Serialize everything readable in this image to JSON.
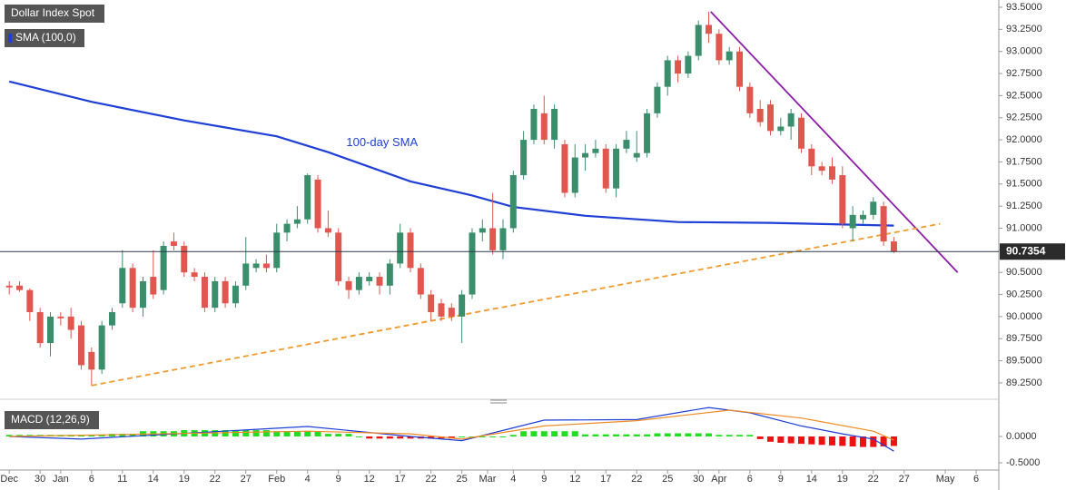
{
  "chart_data": [
    {
      "type": "candlestick",
      "title": "Dollar Index Spot",
      "up_color": "#3b8e6c",
      "down_color": "#e0574f",
      "open": [
        90.35,
        90.35,
        90.3,
        90.05,
        89.7,
        90.0,
        90.0,
        89.9,
        89.6,
        89.4,
        89.9,
        90.15,
        90.55,
        90.1,
        90.45,
        90.3,
        90.85,
        90.8,
        90.5,
        90.45,
        90.1,
        90.4,
        90.15,
        90.35,
        90.55,
        90.6,
        90.55,
        90.95,
        91.05,
        91.1,
        91.55,
        91.0,
        90.95,
        90.4,
        90.3,
        90.4,
        90.45,
        90.35,
        90.6,
        90.95,
        90.55,
        90.25,
        90.15,
        90.1,
        90.0,
        90.25,
        90.95,
        91.0,
        90.75,
        91.0,
        91.6,
        92.0,
        92.3,
        92.0,
        91.95,
        91.4,
        91.8,
        91.85,
        91.9,
        91.45,
        91.9,
        91.8,
        91.85,
        92.3,
        92.6,
        92.9,
        92.75,
        92.95,
        93.3,
        93.2,
        92.9,
        93.0,
        92.6,
        92.35,
        92.4,
        92.1,
        92.15,
        92.25,
        91.9,
        91.7,
        91.7,
        91.6,
        91.0,
        91.1,
        91.15,
        91.25,
        90.85
      ],
      "high": [
        90.4,
        90.4,
        90.32,
        90.1,
        90.05,
        90.05,
        90.1,
        89.95,
        89.65,
        89.95,
        90.1,
        90.75,
        90.6,
        90.45,
        90.75,
        90.85,
        90.95,
        90.85,
        90.55,
        90.5,
        90.45,
        90.45,
        90.4,
        90.9,
        90.65,
        90.7,
        91.05,
        91.1,
        91.25,
        91.62,
        91.6,
        91.2,
        91.0,
        90.45,
        90.5,
        90.5,
        90.5,
        90.65,
        91.05,
        91.0,
        90.6,
        90.3,
        90.2,
        90.15,
        90.3,
        91.0,
        91.1,
        91.4,
        91.1,
        91.65,
        92.1,
        92.4,
        92.5,
        92.4,
        92.0,
        91.95,
        91.95,
        92.0,
        91.95,
        91.95,
        92.1,
        92.1,
        92.35,
        92.65,
        92.95,
        92.95,
        93.0,
        93.35,
        93.45,
        93.25,
        93.05,
        93.05,
        92.65,
        92.45,
        92.45,
        92.25,
        92.35,
        92.3,
        91.95,
        91.75,
        91.8,
        91.7,
        91.25,
        91.2,
        91.35,
        91.3,
        90.9
      ],
      "low": [
        90.25,
        90.28,
        89.95,
        89.65,
        89.55,
        89.9,
        89.75,
        89.4,
        89.22,
        89.35,
        89.85,
        90.1,
        90.05,
        90.0,
        90.2,
        90.25,
        90.75,
        90.45,
        90.4,
        90.05,
        90.05,
        90.1,
        90.1,
        90.3,
        90.5,
        90.5,
        90.5,
        90.85,
        91.0,
        91.05,
        90.95,
        90.9,
        90.35,
        90.2,
        90.25,
        90.35,
        90.25,
        90.25,
        90.55,
        90.5,
        90.2,
        89.95,
        89.95,
        89.95,
        89.7,
        90.2,
        90.85,
        90.7,
        90.65,
        90.95,
        91.55,
        91.95,
        91.95,
        91.9,
        91.35,
        91.35,
        91.65,
        91.8,
        91.4,
        91.35,
        91.85,
        91.75,
        91.8,
        92.25,
        92.5,
        92.65,
        92.7,
        92.9,
        93.1,
        92.85,
        92.85,
        92.55,
        92.25,
        92.15,
        92.05,
        92.05,
        92.0,
        91.85,
        91.6,
        91.6,
        91.5,
        91.0,
        90.85,
        91.05,
        91.1,
        90.8,
        90.72
      ],
      "close": [
        90.33,
        90.3,
        90.05,
        89.7,
        90.0,
        89.98,
        89.85,
        89.45,
        89.4,
        89.9,
        90.05,
        90.55,
        90.1,
        90.4,
        90.25,
        90.8,
        90.8,
        90.5,
        90.45,
        90.1,
        90.4,
        90.15,
        90.35,
        90.6,
        90.6,
        90.55,
        90.95,
        91.05,
        91.1,
        91.6,
        91.0,
        90.95,
        90.4,
        90.3,
        90.45,
        90.45,
        90.35,
        90.6,
        90.95,
        90.55,
        90.25,
        90.05,
        90.0,
        90.0,
        90.25,
        90.95,
        91.0,
        90.75,
        91.0,
        91.6,
        92.0,
        92.35,
        92.0,
        92.35,
        91.4,
        91.8,
        91.85,
        91.9,
        91.45,
        91.9,
        92.0,
        91.85,
        92.3,
        92.6,
        92.9,
        92.75,
        92.95,
        93.3,
        93.2,
        92.9,
        93.0,
        92.6,
        92.3,
        92.2,
        92.1,
        92.15,
        92.3,
        91.9,
        91.7,
        91.65,
        91.55,
        91.05,
        91.15,
        91.15,
        91.3,
        90.85,
        90.7354
      ],
      "sma": {
        "name": "SMA (100,0)",
        "color": "#1f3fd6",
        "annotation": "100-day SMA",
        "x": [
          0,
          8,
          17,
          26,
          31,
          39,
          45,
          49,
          56,
          65,
          74,
          86
        ],
        "values": [
          92.66,
          92.43,
          92.22,
          92.04,
          91.86,
          91.53,
          91.37,
          91.24,
          91.14,
          91.07,
          91.06,
          91.03
        ]
      },
      "trendlines": [
        {
          "color": "#8b1fa8",
          "dashed": false,
          "x": [
            68.2,
            92.2
          ],
          "values": [
            93.45,
            90.5
          ]
        },
        {
          "color": "#f29a2e",
          "dashed": true,
          "x": [
            8,
            90.5
          ],
          "values": [
            89.22,
            91.05
          ]
        }
      ],
      "last_price": 90.7354,
      "xlim": [
        -0.9,
        96.2
      ],
      "ylim": [
        89.085,
        93.582
      ],
      "xticks": [
        {
          "value": 0,
          "label": "Dec"
        },
        {
          "value": 3,
          "label": "30"
        },
        {
          "value": 5,
          "label": "Jan"
        },
        {
          "value": 8,
          "label": "6"
        },
        {
          "value": 11,
          "label": "11"
        },
        {
          "value": 14,
          "label": "14"
        },
        {
          "value": 17,
          "label": "19"
        },
        {
          "value": 20,
          "label": "22"
        },
        {
          "value": 23,
          "label": "27"
        },
        {
          "value": 26,
          "label": "Feb"
        },
        {
          "value": 29,
          "label": "4"
        },
        {
          "value": 32,
          "label": "9"
        },
        {
          "value": 35,
          "label": "12"
        },
        {
          "value": 38,
          "label": "17"
        },
        {
          "value": 41,
          "label": "22"
        },
        {
          "value": 44,
          "label": "25"
        },
        {
          "value": 46.5,
          "label": "Mar"
        },
        {
          "value": 49,
          "label": "4"
        },
        {
          "value": 52,
          "label": "9"
        },
        {
          "value": 55,
          "label": "12"
        },
        {
          "value": 58,
          "label": "17"
        },
        {
          "value": 61,
          "label": "22"
        },
        {
          "value": 64,
          "label": "25"
        },
        {
          "value": 67,
          "label": "30"
        },
        {
          "value": 69,
          "label": "Apr"
        },
        {
          "value": 72,
          "label": "6"
        },
        {
          "value": 75,
          "label": "9"
        },
        {
          "value": 78,
          "label": "14"
        },
        {
          "value": 81,
          "label": "19"
        },
        {
          "value": 84,
          "label": "22"
        },
        {
          "value": 87,
          "label": "27"
        },
        {
          "value": 91,
          "label": "May"
        },
        {
          "value": 94,
          "label": "6"
        }
      ],
      "yticks": [
        {
          "value": 89.25,
          "label": "89.2500"
        },
        {
          "value": 89.5,
          "label": "89.5000"
        },
        {
          "value": 89.75,
          "label": "89.7500"
        },
        {
          "value": 90,
          "label": "90.0000"
        },
        {
          "value": 90.25,
          "label": "90.2500"
        },
        {
          "value": 90.5,
          "label": "90.5000"
        },
        {
          "value": 90.75,
          "label": "90.7500"
        },
        {
          "value": 91,
          "label": "91.0000"
        },
        {
          "value": 91.25,
          "label": "91.2500"
        },
        {
          "value": 91.5,
          "label": "91.5000"
        },
        {
          "value": 91.75,
          "label": "91.7500"
        },
        {
          "value": 92,
          "label": "92.0000"
        },
        {
          "value": 92.25,
          "label": "92.2500"
        },
        {
          "value": 92.5,
          "label": "92.5000"
        },
        {
          "value": 92.75,
          "label": "92.7500"
        },
        {
          "value": 93,
          "label": "93.0000"
        },
        {
          "value": 93.25,
          "label": "93.2500"
        },
        {
          "value": 93.5,
          "label": "93.5000"
        }
      ]
    },
    {
      "type": "macd",
      "title": "MACD (12,26,9)",
      "xlim": [
        -0.9,
        96.2
      ],
      "ylim": [
        -0.638,
        0.569
      ],
      "yticks": [
        {
          "value": 0,
          "label": "0.0000"
        },
        {
          "value": -0.5,
          "label": "-0.5000"
        }
      ],
      "series": [
        {
          "color": "#1f3fd6",
          "x": [
            0,
            7,
            29,
            39,
            44,
            52,
            61,
            68,
            72,
            77,
            81,
            84,
            86
          ],
          "values": [
            0.0,
            -0.05,
            0.19,
            0.0,
            -0.08,
            0.31,
            0.32,
            0.55,
            0.45,
            0.2,
            0.05,
            -0.05,
            -0.28
          ]
        },
        {
          "color": "#f08a24",
          "x": [
            0,
            29,
            39,
            44,
            52,
            61,
            70,
            77,
            84,
            86
          ],
          "values": [
            0.0,
            0.1,
            0.05,
            -0.05,
            0.2,
            0.3,
            0.5,
            0.35,
            0.1,
            -0.07
          ]
        }
      ],
      "histogram": {
        "up_color": "#22dd22",
        "down_color": "#ee1111",
        "values": [
          0.03,
          0.03,
          0.03,
          0.03,
          0.03,
          0.03,
          0.03,
          0.03,
          0.03,
          0.03,
          0.05,
          0.05,
          0.05,
          0.1,
          0.1,
          0.1,
          0.1,
          0.12,
          0.12,
          0.12,
          0.12,
          0.12,
          0.12,
          0.12,
          0.12,
          0.12,
          0.1,
          0.1,
          0.1,
          0.1,
          0.1,
          0.05,
          0.05,
          0.05,
          0.0,
          -0.04,
          -0.04,
          -0.04,
          -0.04,
          -0.04,
          -0.04,
          -0.04,
          -0.04,
          -0.04,
          0.0,
          0.0,
          0.0,
          0.0,
          0.0,
          0.03,
          0.1,
          0.1,
          0.1,
          0.1,
          0.1,
          0.1,
          0.04,
          0.04,
          0.04,
          0.04,
          0.04,
          0.04,
          0.04,
          0.06,
          0.06,
          0.06,
          0.06,
          0.06,
          0.06,
          0.03,
          0.03,
          0.03,
          0.03,
          -0.05,
          -0.1,
          -0.12,
          -0.13,
          -0.14,
          -0.15,
          -0.16,
          -0.17,
          -0.18,
          -0.19,
          -0.2,
          -0.2,
          -0.19,
          -0.18
        ]
      }
    }
  ]
}
